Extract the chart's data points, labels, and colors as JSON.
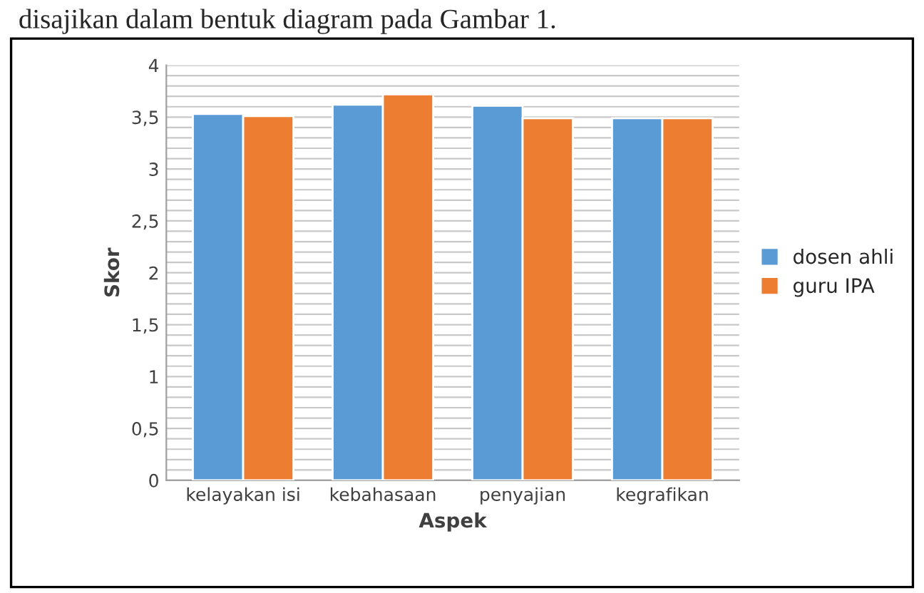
{
  "chart_data": {
    "type": "bar",
    "categories": [
      "kelayakan isi",
      "kebahasaan",
      "penyajian",
      "kegrafikan"
    ],
    "series": [
      {
        "name": "dosen ahli",
        "color": "#5b9bd5",
        "values": [
          3.53,
          3.62,
          3.61,
          3.49
        ]
      },
      {
        "name": "guru IPA",
        "color": "#ed7d31",
        "values": [
          3.51,
          3.72,
          3.49,
          3.49
        ]
      }
    ],
    "xlabel": "Aspek",
    "ylabel": "Skor",
    "ylim": [
      0,
      4
    ],
    "yticks": [
      {
        "value": 0,
        "label": "0"
      },
      {
        "value": 0.1,
        "label": null
      },
      {
        "value": 0.2,
        "label": null
      },
      {
        "value": 0.3,
        "label": null
      },
      {
        "value": 0.4,
        "label": null
      },
      {
        "value": 0.5,
        "label": "0,5"
      },
      {
        "value": 0.6,
        "label": null
      },
      {
        "value": 0.7,
        "label": null
      },
      {
        "value": 0.8,
        "label": null
      },
      {
        "value": 0.9,
        "label": null
      },
      {
        "value": 1,
        "label": "1"
      },
      {
        "value": 1.1,
        "label": null
      },
      {
        "value": 1.2,
        "label": null
      },
      {
        "value": 1.3,
        "label": null
      },
      {
        "value": 1.4,
        "label": null
      },
      {
        "value": 1.5,
        "label": "1,5"
      },
      {
        "value": 1.6,
        "label": null
      },
      {
        "value": 1.7,
        "label": null
      },
      {
        "value": 1.8,
        "label": null
      },
      {
        "value": 1.9,
        "label": null
      },
      {
        "value": 2,
        "label": "2"
      },
      {
        "value": 2.1,
        "label": null
      },
      {
        "value": 2.2,
        "label": null
      },
      {
        "value": 2.3,
        "label": null
      },
      {
        "value": 2.4,
        "label": null
      },
      {
        "value": 2.5,
        "label": "2,5"
      },
      {
        "value": 2.6,
        "label": null
      },
      {
        "value": 2.7,
        "label": null
      },
      {
        "value": 2.8,
        "label": null
      },
      {
        "value": 2.9,
        "label": null
      },
      {
        "value": 3,
        "label": "3"
      },
      {
        "value": 3.1,
        "label": null
      },
      {
        "value": 3.2,
        "label": null
      },
      {
        "value": 3.3,
        "label": null
      },
      {
        "value": 3.4,
        "label": null
      },
      {
        "value": 3.5,
        "label": "3,5"
      },
      {
        "value": 3.6,
        "label": null
      },
      {
        "value": 3.7,
        "label": null
      },
      {
        "value": 3.8,
        "label": null
      },
      {
        "value": 3.9,
        "label": null
      },
      {
        "value": 4,
        "label": "4"
      }
    ],
    "grid": "y",
    "legend": "right",
    "annotations": [
      "disajikan dalam bentuk diagram pada Gambar 1."
    ]
  }
}
